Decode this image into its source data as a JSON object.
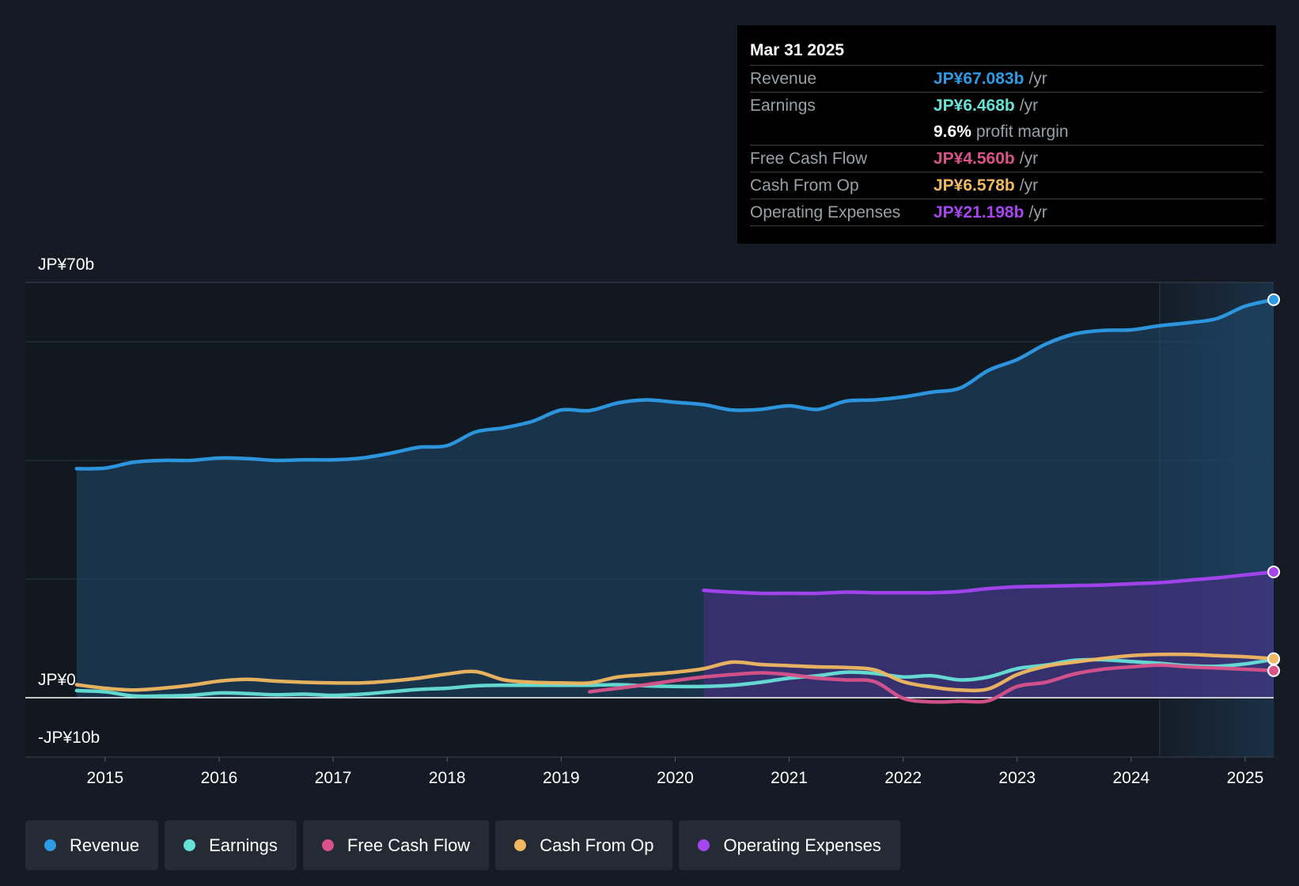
{
  "tooltip": {
    "date": "Mar 31 2025",
    "rows": [
      {
        "label": "Revenue",
        "value": "JP¥67.083b",
        "unit": "/yr",
        "color": "#2d9be6"
      },
      {
        "label": "Earnings",
        "value": "JP¥6.468b",
        "unit": "/yr",
        "color": "#67e2d6"
      },
      {
        "label": "",
        "value": "9.6%",
        "unit": "profit margin",
        "color": "#ffffff"
      },
      {
        "label": "Free Cash Flow",
        "value": "JP¥4.560b",
        "unit": "/yr",
        "color": "#d9538a"
      },
      {
        "label": "Cash From Op",
        "value": "JP¥6.578b",
        "unit": "/yr",
        "color": "#f0b860"
      },
      {
        "label": "Operating Expenses",
        "value": "JP¥21.198b",
        "unit": "/yr",
        "color": "#a745f1"
      }
    ]
  },
  "legend": [
    {
      "label": "Revenue",
      "color": "#2d9be6"
    },
    {
      "label": "Earnings",
      "color": "#67e2d6"
    },
    {
      "label": "Free Cash Flow",
      "color": "#d9538a"
    },
    {
      "label": "Cash From Op",
      "color": "#f0b860"
    },
    {
      "label": "Operating Expenses",
      "color": "#a745f1"
    }
  ],
  "chart_data": {
    "type": "line",
    "title": "",
    "currency": "JP¥",
    "y_axis_labels": [
      "JP¥70b",
      "JP¥0",
      "-JP¥10b"
    ],
    "ylim": [
      -10,
      70
    ],
    "xlim": [
      2014.3,
      2025.25
    ],
    "highlight_start": 2024.25,
    "x_ticks": [
      2015,
      2016,
      2017,
      2018,
      2019,
      2020,
      2021,
      2022,
      2023,
      2024,
      2025
    ],
    "series": [
      {
        "name": "Revenue",
        "color": "#2d9be6",
        "fill": true,
        "x": [
          2014.75,
          2015.0,
          2015.25,
          2015.5,
          2015.75,
          2016.0,
          2016.25,
          2016.5,
          2016.75,
          2017.0,
          2017.25,
          2017.5,
          2017.75,
          2018.0,
          2018.25,
          2018.5,
          2018.75,
          2019.0,
          2019.25,
          2019.5,
          2019.75,
          2020.0,
          2020.25,
          2020.5,
          2020.75,
          2021.0,
          2021.25,
          2021.5,
          2021.75,
          2022.0,
          2022.25,
          2022.5,
          2022.75,
          2023.0,
          2023.25,
          2023.5,
          2023.75,
          2024.0,
          2024.25,
          2024.5,
          2024.75,
          2025.0,
          2025.25
        ],
        "values": [
          38.6,
          38.7,
          39.7,
          40.0,
          40.0,
          40.4,
          40.3,
          40.0,
          40.1,
          40.1,
          40.4,
          41.2,
          42.2,
          42.5,
          44.8,
          45.5,
          46.6,
          48.5,
          48.4,
          49.7,
          50.2,
          49.8,
          49.4,
          48.5,
          48.6,
          49.2,
          48.6,
          50.0,
          50.2,
          50.7,
          51.5,
          52.2,
          55.2,
          57.0,
          59.6,
          61.3,
          61.9,
          62.0,
          62.7,
          63.2,
          63.9,
          66.0,
          67.083
        ]
      },
      {
        "name": "Operating Expenses",
        "color": "#a745f1",
        "fill": true,
        "x": [
          2020.25,
          2020.5,
          2020.75,
          2021.0,
          2021.25,
          2021.5,
          2021.75,
          2022.0,
          2022.25,
          2022.5,
          2022.75,
          2023.0,
          2023.25,
          2023.5,
          2023.75,
          2024.0,
          2024.25,
          2024.5,
          2024.75,
          2025.0,
          2025.25
        ],
        "values": [
          18.1,
          17.8,
          17.6,
          17.6,
          17.6,
          17.8,
          17.7,
          17.7,
          17.7,
          17.9,
          18.4,
          18.7,
          18.8,
          18.9,
          19.0,
          19.2,
          19.4,
          19.8,
          20.2,
          20.7,
          21.198
        ]
      },
      {
        "name": "Earnings",
        "color": "#67e2d6",
        "fill": false,
        "x": [
          2014.75,
          2015.0,
          2015.25,
          2015.5,
          2015.75,
          2016.0,
          2016.25,
          2016.5,
          2016.75,
          2017.0,
          2017.25,
          2017.5,
          2017.75,
          2018.0,
          2018.25,
          2018.5,
          2018.75,
          2019.0,
          2019.25,
          2019.5,
          2019.75,
          2020.0,
          2020.25,
          2020.5,
          2020.75,
          2021.0,
          2021.25,
          2021.5,
          2021.75,
          2022.0,
          2022.25,
          2022.5,
          2022.75,
          2023.0,
          2023.25,
          2023.5,
          2023.75,
          2024.0,
          2024.25,
          2024.5,
          2024.75,
          2025.0,
          2025.25
        ],
        "values": [
          1.2,
          1.0,
          0.3,
          0.3,
          0.4,
          0.8,
          0.7,
          0.5,
          0.6,
          0.4,
          0.6,
          1.0,
          1.4,
          1.6,
          2.0,
          2.1,
          2.1,
          2.1,
          2.1,
          2.2,
          2.0,
          1.9,
          1.9,
          2.1,
          2.6,
          3.3,
          3.7,
          4.3,
          4.1,
          3.5,
          3.7,
          3.0,
          3.5,
          4.9,
          5.5,
          6.3,
          6.4,
          6.1,
          5.8,
          5.4,
          5.3,
          5.7,
          6.468
        ]
      },
      {
        "name": "Free Cash Flow",
        "color": "#d9538a",
        "fill": false,
        "x": [
          2019.25,
          2019.5,
          2019.75,
          2020.0,
          2020.25,
          2020.5,
          2020.75,
          2021.0,
          2021.25,
          2021.5,
          2021.75,
          2022.0,
          2022.25,
          2022.5,
          2022.75,
          2023.0,
          2023.25,
          2023.5,
          2023.75,
          2024.0,
          2024.25,
          2024.5,
          2024.75,
          2025.0,
          2025.25
        ],
        "values": [
          1.0,
          1.6,
          2.2,
          2.9,
          3.5,
          3.9,
          4.2,
          3.9,
          3.3,
          3.0,
          2.7,
          -0.1,
          -0.7,
          -0.6,
          -0.5,
          1.9,
          2.6,
          4.0,
          4.8,
          5.2,
          5.5,
          5.2,
          5.0,
          4.8,
          4.56
        ]
      },
      {
        "name": "Cash From Op",
        "color": "#f0b860",
        "fill": false,
        "x": [
          2014.75,
          2015.0,
          2015.25,
          2015.5,
          2015.75,
          2016.0,
          2016.25,
          2016.5,
          2016.75,
          2017.0,
          2017.25,
          2017.5,
          2017.75,
          2018.0,
          2018.25,
          2018.5,
          2018.75,
          2019.0,
          2019.25,
          2019.5,
          2019.75,
          2020.0,
          2020.25,
          2020.5,
          2020.75,
          2021.0,
          2021.25,
          2021.5,
          2021.75,
          2022.0,
          2022.25,
          2022.5,
          2022.75,
          2023.0,
          2023.25,
          2023.5,
          2023.75,
          2024.0,
          2024.25,
          2024.5,
          2024.75,
          2025.0,
          2025.25
        ],
        "values": [
          2.2,
          1.6,
          1.3,
          1.6,
          2.1,
          2.8,
          3.1,
          2.8,
          2.6,
          2.5,
          2.5,
          2.8,
          3.3,
          4.0,
          4.4,
          3.0,
          2.6,
          2.5,
          2.5,
          3.5,
          3.9,
          4.3,
          4.9,
          6.0,
          5.6,
          5.4,
          5.2,
          5.1,
          4.7,
          2.7,
          1.8,
          1.3,
          1.5,
          3.9,
          5.3,
          6.0,
          6.6,
          7.1,
          7.3,
          7.3,
          7.1,
          6.9,
          6.578
        ]
      }
    ]
  }
}
